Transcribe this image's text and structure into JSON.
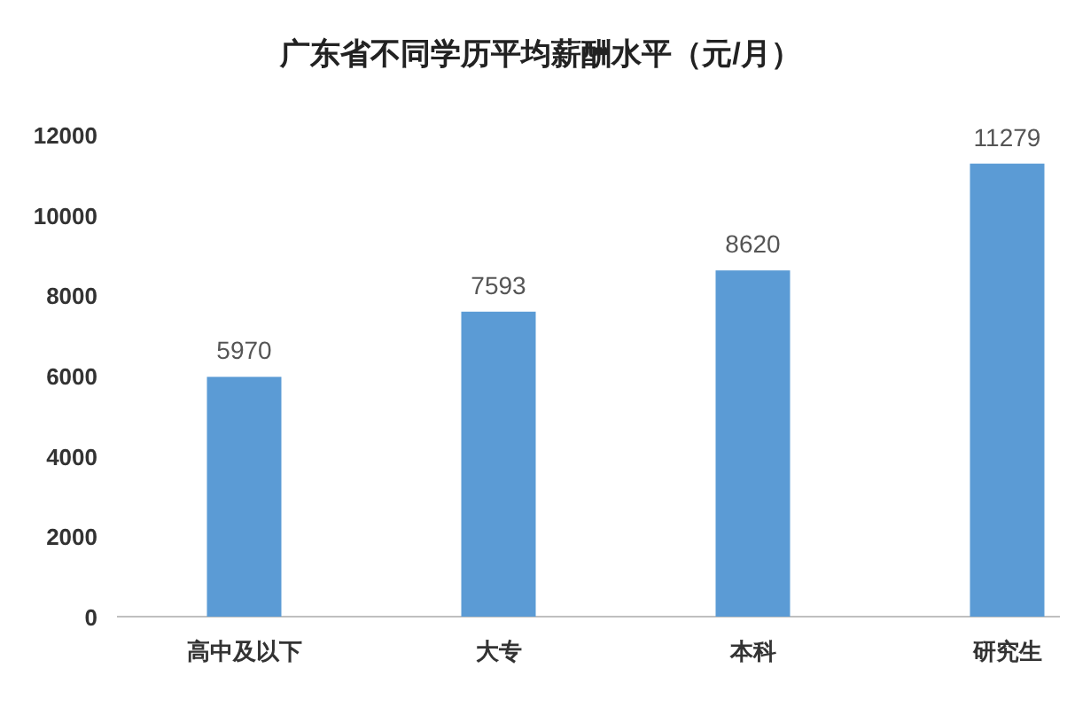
{
  "chart_data": {
    "type": "bar",
    "title": "广东省不同学历平均薪酬水平（元/月）",
    "categories": [
      "高中及以下",
      "大专",
      "本科",
      "研究生"
    ],
    "values": [
      5970,
      7593,
      8620,
      11279
    ],
    "color": "#5b9bd5",
    "ylim": [
      0,
      12000
    ],
    "yticks": [
      0,
      2000,
      4000,
      6000,
      8000,
      10000,
      12000
    ],
    "data_labels": true
  }
}
